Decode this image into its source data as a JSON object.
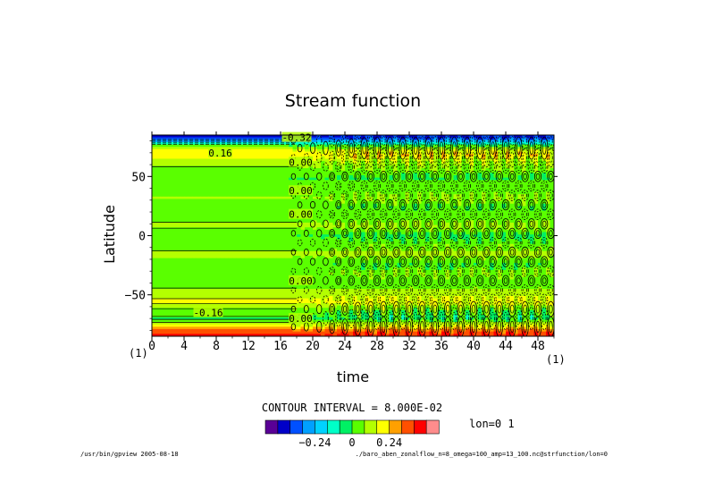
{
  "chart_data": {
    "type": "heatmap",
    "title": "Stream function",
    "xlabel": "time",
    "ylabel": "Latitude",
    "xlim": [
      0,
      50
    ],
    "ylim": [
      -85,
      85
    ],
    "x_ticks": [
      "0",
      "4",
      "8",
      "12",
      "16",
      "20",
      "24",
      "28",
      "32",
      "36",
      "40",
      "44",
      "48"
    ],
    "x_tick_values": [
      0,
      4,
      8,
      12,
      16,
      20,
      24,
      28,
      32,
      36,
      40,
      44,
      48
    ],
    "y_ticks": [
      "50",
      "0",
      "−50"
    ],
    "y_tick_values": [
      50,
      0,
      -50
    ],
    "x_units_left": "(1)",
    "x_units_right": "(1)",
    "contour_interval_label": "CONTOUR INTERVAL = 8.000E-02",
    "contour_interval": 0.08,
    "onset_time": 17,
    "lat_profile": [
      {
        "lat": 85,
        "value": -0.44
      },
      {
        "lat": 82,
        "value": -0.36
      },
      {
        "lat": 79,
        "value": -0.2
      },
      {
        "lat": 76,
        "value": 0.0
      },
      {
        "lat": 72,
        "value": 0.16
      },
      {
        "lat": 68,
        "value": 0.2
      },
      {
        "lat": 63,
        "value": 0.12
      },
      {
        "lat": 56,
        "value": 0.06
      },
      {
        "lat": 48,
        "value": 0.0
      },
      {
        "lat": 40,
        "value": 0.03
      },
      {
        "lat": 32,
        "value": 0.08
      },
      {
        "lat": 24,
        "value": 0.02
      },
      {
        "lat": 16,
        "value": 0.05
      },
      {
        "lat": 8,
        "value": 0.1
      },
      {
        "lat": 0,
        "value": 0.0
      },
      {
        "lat": -8,
        "value": 0.05
      },
      {
        "lat": -16,
        "value": 0.1
      },
      {
        "lat": -24,
        "value": 0.02
      },
      {
        "lat": -32,
        "value": 0.06
      },
      {
        "lat": -40,
        "value": 0.03
      },
      {
        "lat": -48,
        "value": 0.12
      },
      {
        "lat": -56,
        "value": 0.18
      },
      {
        "lat": -63,
        "value": 0.06
      },
      {
        "lat": -70,
        "value": -0.02
      },
      {
        "lat": -76,
        "value": 0.16
      },
      {
        "lat": -80,
        "value": 0.32
      },
      {
        "lat": -83,
        "value": 0.4
      },
      {
        "lat": -85,
        "value": 0.44
      }
    ],
    "contour_labels": [
      {
        "text": "0.16",
        "t": 8.5,
        "lat": 70
      },
      {
        "text": "-0.16",
        "t": 7.0,
        "lat": -65
      },
      {
        "text": "-0.32",
        "t": 18.0,
        "lat": 83
      },
      {
        "text": "0.00",
        "t": 18.5,
        "lat": 62
      },
      {
        "text": "0.00",
        "t": 18.5,
        "lat": 38
      },
      {
        "text": "0.00",
        "t": 18.5,
        "lat": 18
      },
      {
        "text": "0.00",
        "t": 18.5,
        "lat": -38
      },
      {
        "text": "0.00",
        "t": 18.5,
        "lat": -70
      }
    ],
    "colorbar": {
      "levels": [
        -0.48,
        -0.4,
        -0.32,
        -0.24,
        -0.16,
        -0.08,
        0,
        0.08,
        0.16,
        0.24,
        0.32,
        0.4,
        0.48
      ],
      "colors": [
        "#5a0096",
        "#0000c8",
        "#0050ff",
        "#00a0ff",
        "#00d2ff",
        "#00ffc8",
        "#00f064",
        "#5aff00",
        "#b4ff00",
        "#ffff00",
        "#ffa000",
        "#ff5000",
        "#ff0000",
        "#ff8c8c"
      ],
      "tick_labels": [
        "−0.24",
        "0",
        "0.24"
      ],
      "tick_values": [
        -0.24,
        0,
        0.24
      ]
    }
  },
  "annotations": {
    "section_label": "lon=0 1",
    "footer_left": "/usr/bin/gpview  2005-08-18",
    "footer_right": "./baro_aben_zonalflow_n=8_omega=100_amp=13_100.nc@strfunction/lon=0"
  }
}
